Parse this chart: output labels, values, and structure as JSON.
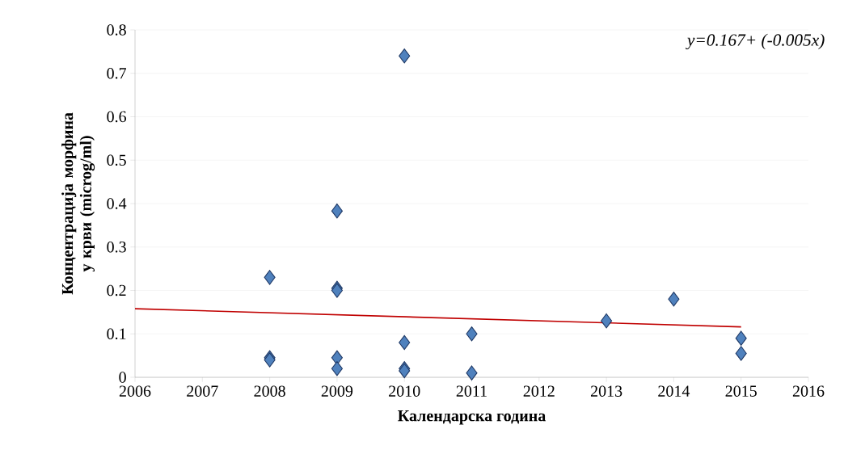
{
  "chart_data": {
    "type": "scatter",
    "xlabel": "Календарска година",
    "ylabel": "Концентрација морфина у крви (microg/ml)",
    "annotations": [
      "y=0.167+ (-0.005x)"
    ],
    "xlim": [
      2006,
      2016
    ],
    "xticks": [
      2006,
      2007,
      2008,
      2009,
      2010,
      2011,
      2012,
      2013,
      2014,
      2015,
      2016
    ],
    "ylim": [
      0,
      0.8
    ],
    "yticks": [
      0,
      0.1,
      0.2,
      0.3,
      0.4,
      0.5,
      0.6,
      0.7,
      0.8
    ],
    "grid": "y",
    "marker": "diamond",
    "series": [
      {
        "color": "#4f81bd",
        "x": [
          2008,
          2008,
          2008,
          2009,
          2009,
          2009,
          2009,
          2009,
          2010,
          2010,
          2010,
          2010,
          2011,
          2011,
          2013,
          2014,
          2015,
          2015
        ],
        "values": [
          0.23,
          0.045,
          0.04,
          0.383,
          0.205,
          0.2,
          0.045,
          0.02,
          0.74,
          0.08,
          0.02,
          0.015,
          0.1,
          0.01,
          0.13,
          0.18,
          0.09,
          0.055
        ]
      },
      {
        "type": "line",
        "color": "#c00000",
        "marker": "none",
        "x": [
          2006,
          2015
        ],
        "values": [
          0.158,
          0.116
        ]
      }
    ]
  }
}
